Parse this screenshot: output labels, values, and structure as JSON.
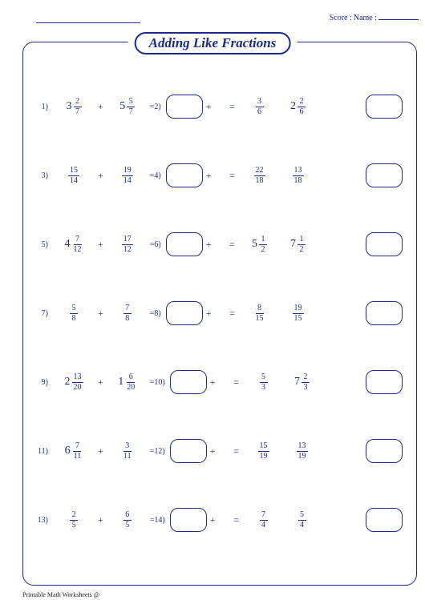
{
  "colors": {
    "accent": "#1a2a8a",
    "background": "#ffffff",
    "text_dark": "#222222"
  },
  "header": {
    "score_label": "Score :",
    "name_label": "Name :"
  },
  "title": "Adding Like Fractions",
  "footer": "Printable Math Worksheets @",
  "sizing": {
    "title_fontsize": 17,
    "row_fontsize": 12,
    "num_fontsize": 10,
    "box_radius": 10,
    "frame_radius": 14
  },
  "rows": [
    {
      "left_num": "1)",
      "term1": {
        "whole": "3",
        "n": "2",
        "d": "7"
      },
      "term2": {
        "whole": "5",
        "n": "5",
        "d": "7"
      },
      "right_num": "=2)",
      "after_eq_term": {
        "whole": "",
        "n": "3",
        "d": "6"
      },
      "extra_term": {
        "whole": "2",
        "n": "2",
        "d": "6"
      }
    },
    {
      "left_num": "3)",
      "term1": {
        "whole": "",
        "n": "15",
        "d": "14"
      },
      "term2": {
        "whole": "",
        "n": "19",
        "d": "14"
      },
      "right_num": "=4)",
      "after_eq_term": {
        "whole": "",
        "n": "22",
        "d": "18"
      },
      "extra_term": {
        "whole": "",
        "n": "13",
        "d": "18"
      }
    },
    {
      "left_num": "5)",
      "term1": {
        "whole": "4",
        "n": "7",
        "d": "12"
      },
      "term2": {
        "whole": "",
        "n": "17",
        "d": "12"
      },
      "right_num": "=6)",
      "after_eq_term": {
        "whole": "5",
        "n": "1",
        "d": "2"
      },
      "extra_term": {
        "whole": "7",
        "n": "1",
        "d": "2"
      }
    },
    {
      "left_num": "7)",
      "term1": {
        "whole": "",
        "n": "5",
        "d": "8"
      },
      "term2": {
        "whole": "",
        "n": "7",
        "d": "8"
      },
      "right_num": "=8)",
      "after_eq_term": {
        "whole": "",
        "n": "8",
        "d": "15"
      },
      "extra_term": {
        "whole": "",
        "n": "19",
        "d": "15"
      }
    },
    {
      "left_num": "9)",
      "term1": {
        "whole": "2",
        "n": "13",
        "d": "20"
      },
      "term2": {
        "whole": "1",
        "n": "6",
        "d": "20"
      },
      "right_num": "=10)",
      "after_eq_term": {
        "whole": "",
        "n": "5",
        "d": "3"
      },
      "extra_term": {
        "whole": "7",
        "n": "2",
        "d": "3"
      }
    },
    {
      "left_num": "11)",
      "term1": {
        "whole": "6",
        "n": "7",
        "d": "11"
      },
      "term2": {
        "whole": "",
        "n": "3",
        "d": "11"
      },
      "right_num": "=12)",
      "after_eq_term": {
        "whole": "",
        "n": "15",
        "d": "19"
      },
      "extra_term": {
        "whole": "",
        "n": "13",
        "d": "19"
      }
    },
    {
      "left_num": "13)",
      "term1": {
        "whole": "",
        "n": "2",
        "d": "5"
      },
      "term2": {
        "whole": "",
        "n": "6",
        "d": "5"
      },
      "right_num": "=14)",
      "after_eq_term": {
        "whole": "",
        "n": "7",
        "d": "4"
      },
      "extra_term": {
        "whole": "",
        "n": "5",
        "d": "4"
      }
    }
  ]
}
